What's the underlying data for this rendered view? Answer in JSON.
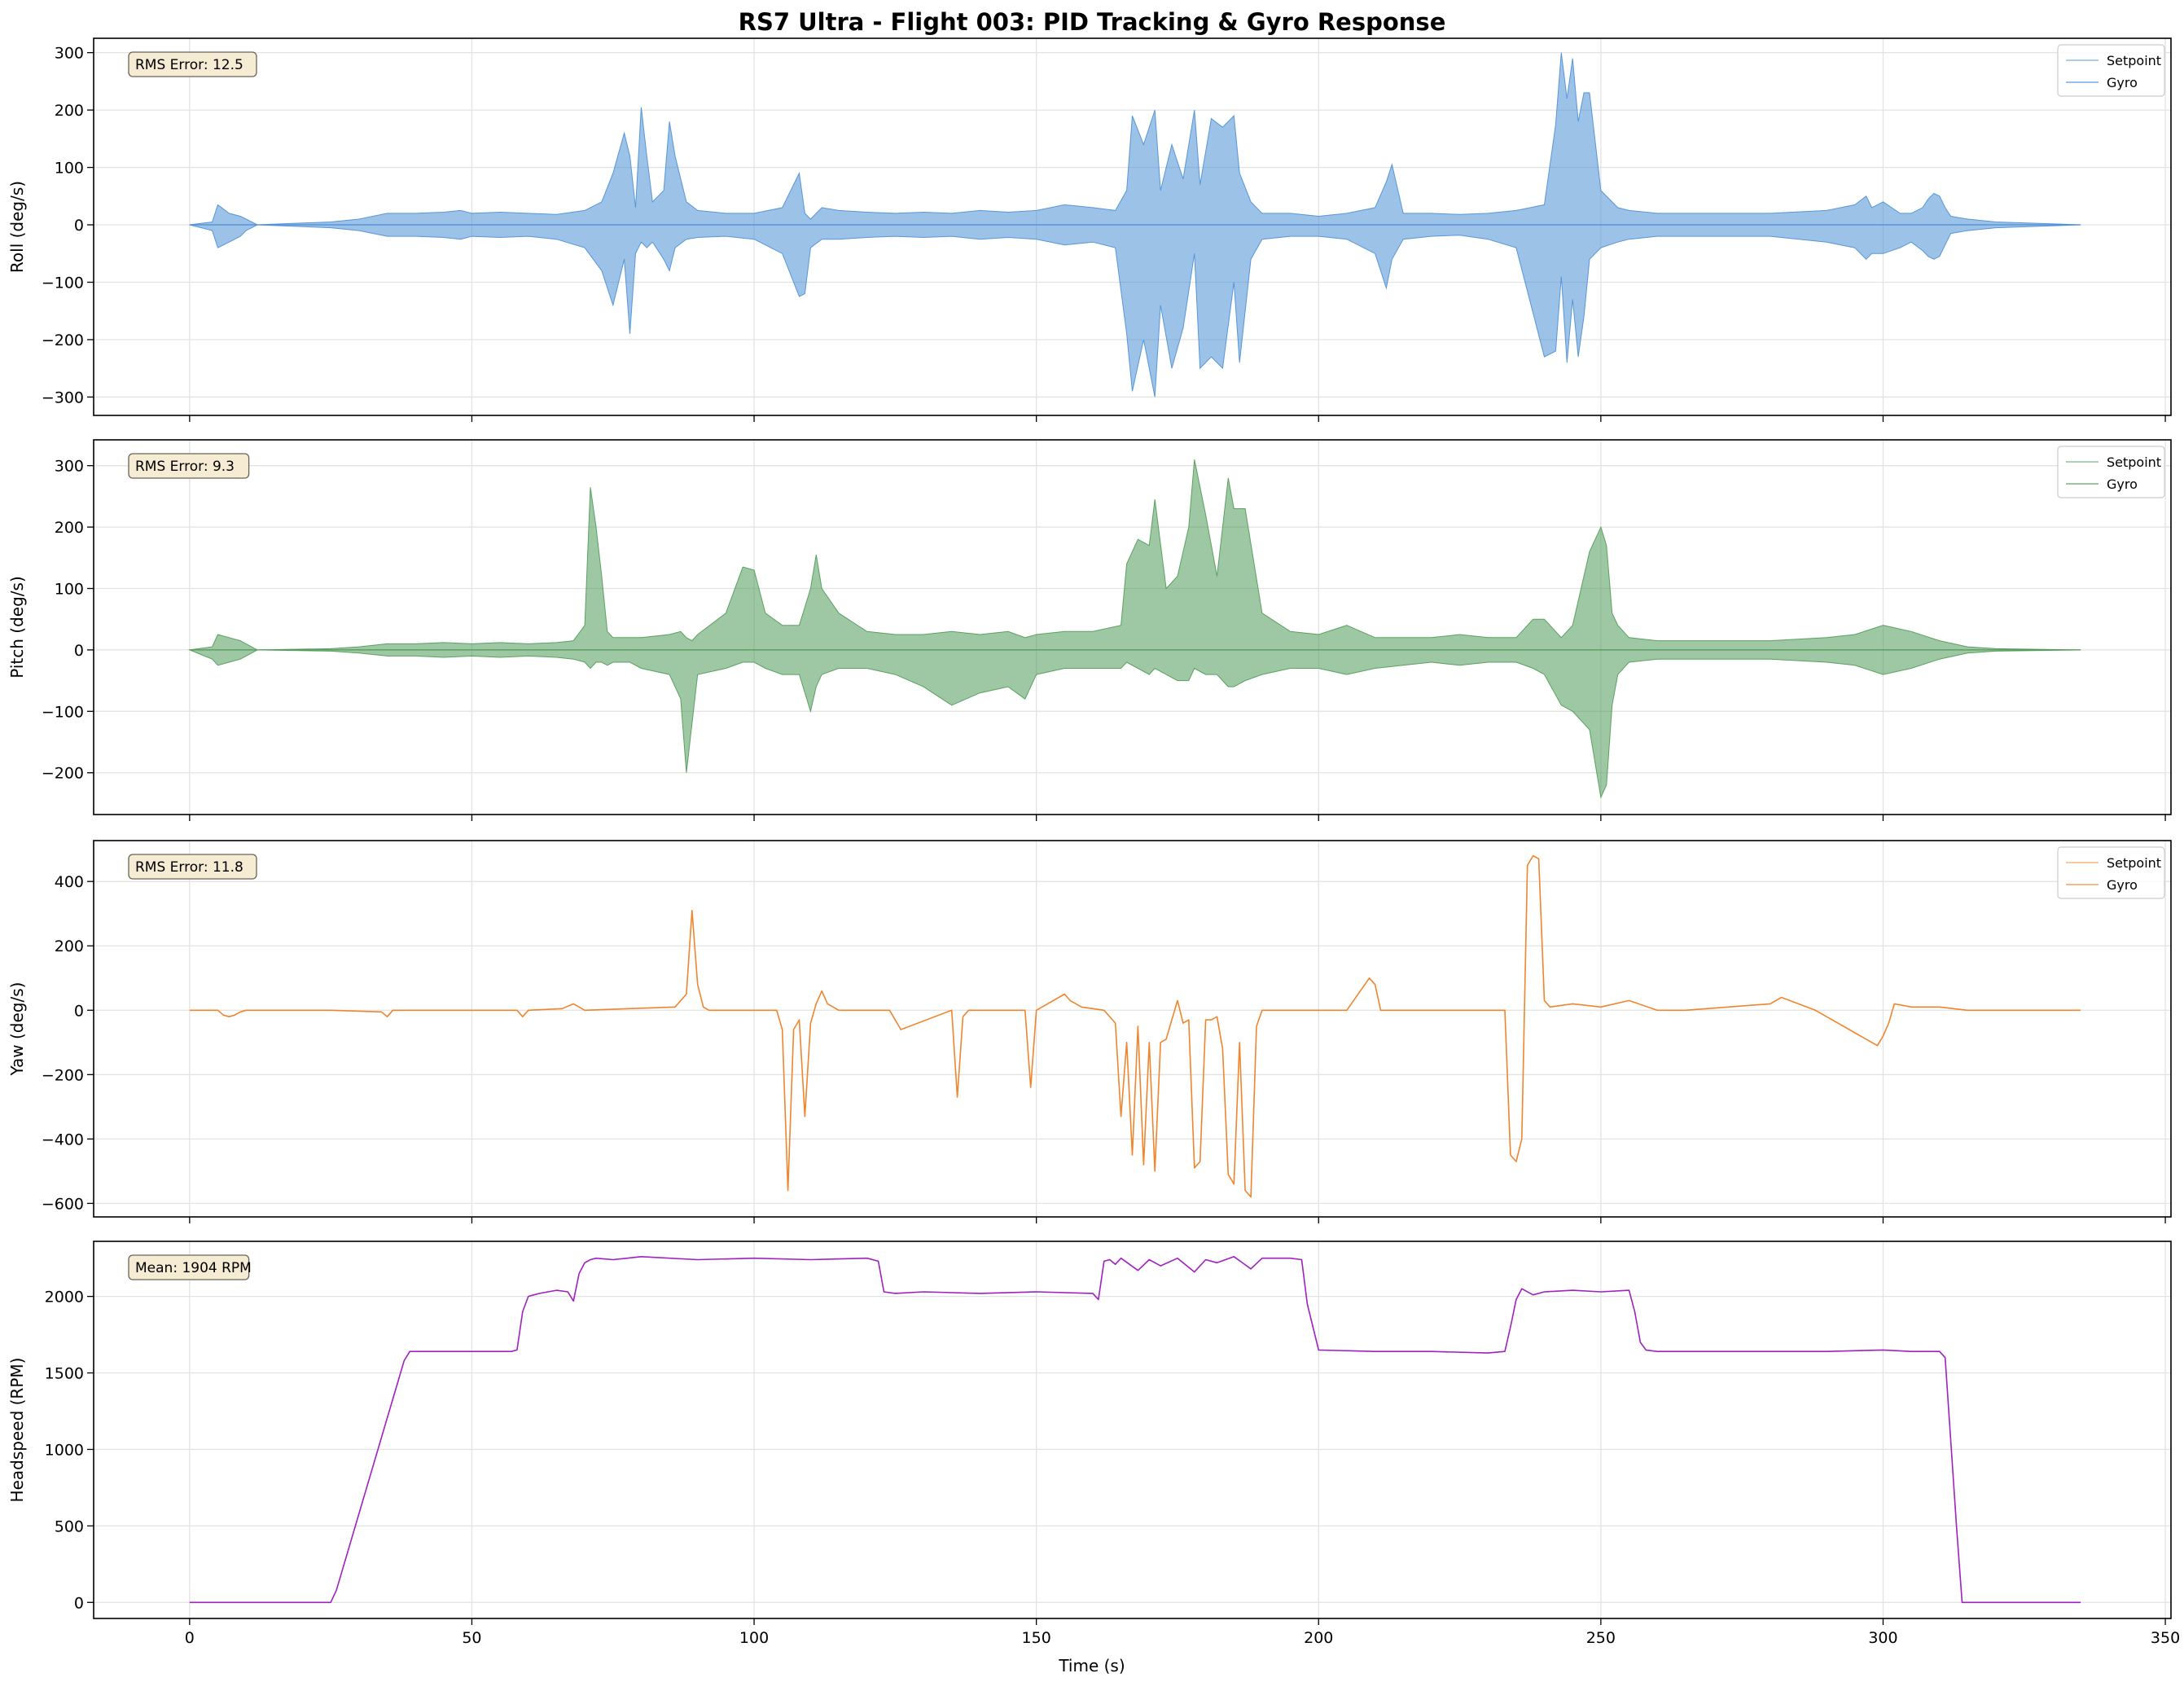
{
  "figure": {
    "title": "RS7 Ultra - Flight 003: PID Tracking & Gyro Response",
    "xlabel": "Time (s)"
  },
  "colors": {
    "roll": "#4a8fd6",
    "pitch": "#4f9a57",
    "yaw": "#f0852d",
    "headspeed": "#a020c0",
    "annotation_fill": "#f6ebd3"
  },
  "chart_data": [
    {
      "type": "line",
      "ylabel": "Roll (deg/s)",
      "annotation": "RMS Error: 12.5",
      "xlim": [
        -17,
        351
      ],
      "ylim": [
        -332,
        325
      ],
      "xticks": [
        0,
        50,
        100,
        150,
        200,
        250,
        300,
        350
      ],
      "yticks": [
        -300,
        -200,
        -100,
        0,
        100,
        200,
        300
      ],
      "grid": true,
      "legend": "top-right",
      "series": [
        {
          "name": "Setpoint",
          "color": "roll"
        },
        {
          "name": "Gyro",
          "color": "roll"
        }
      ],
      "envelope": {
        "description": "approximate max/min extent of signal over time",
        "x": [
          0,
          4,
          5,
          7,
          9,
          10,
          12,
          25,
          30,
          35,
          40,
          45,
          48,
          50,
          55,
          60,
          65,
          70,
          73,
          75,
          77,
          78,
          79,
          80,
          81,
          82,
          84,
          85,
          86,
          88,
          90,
          95,
          100,
          105,
          108,
          109,
          110,
          112,
          115,
          120,
          125,
          130,
          135,
          140,
          145,
          150,
          155,
          160,
          164,
          166,
          167,
          169,
          171,
          172,
          174,
          176,
          178,
          179,
          181,
          183,
          185,
          186,
          188,
          190,
          195,
          200,
          205,
          210,
          212,
          213,
          215,
          220,
          225,
          230,
          235,
          240,
          242,
          243,
          244,
          245,
          246,
          247,
          248,
          250,
          253,
          255,
          260,
          270,
          280,
          290,
          295,
          297,
          298,
          300,
          303,
          305,
          307,
          308,
          309,
          310,
          311,
          312,
          315,
          320,
          335
        ],
        "max": [
          0,
          5,
          35,
          20,
          15,
          10,
          0,
          5,
          10,
          20,
          20,
          22,
          25,
          20,
          22,
          20,
          18,
          25,
          40,
          90,
          160,
          120,
          30,
          205,
          120,
          40,
          60,
          180,
          120,
          40,
          25,
          20,
          20,
          30,
          90,
          20,
          10,
          30,
          25,
          22,
          20,
          22,
          20,
          25,
          22,
          25,
          35,
          30,
          25,
          60,
          190,
          140,
          200,
          60,
          140,
          80,
          200,
          70,
          185,
          170,
          190,
          90,
          40,
          20,
          20,
          15,
          20,
          30,
          75,
          105,
          20,
          20,
          18,
          20,
          25,
          35,
          175,
          300,
          220,
          290,
          180,
          230,
          230,
          60,
          30,
          25,
          20,
          20,
          20,
          25,
          35,
          50,
          30,
          40,
          20,
          20,
          30,
          45,
          55,
          50,
          30,
          15,
          10,
          5,
          0
        ],
        "min": [
          0,
          -10,
          -40,
          -30,
          -20,
          -10,
          0,
          -5,
          -10,
          -20,
          -20,
          -22,
          -25,
          -20,
          -22,
          -20,
          -25,
          -40,
          -80,
          -140,
          -60,
          -190,
          -50,
          -30,
          -40,
          -30,
          -60,
          -80,
          -40,
          -25,
          -22,
          -20,
          -25,
          -50,
          -125,
          -120,
          -40,
          -25,
          -25,
          -22,
          -20,
          -22,
          -20,
          -25,
          -22,
          -25,
          -35,
          -30,
          -40,
          -190,
          -290,
          -200,
          -300,
          -140,
          -250,
          -180,
          -50,
          -250,
          -230,
          -250,
          -100,
          -240,
          -60,
          -25,
          -20,
          -20,
          -25,
          -50,
          -110,
          -60,
          -25,
          -20,
          -18,
          -25,
          -40,
          -230,
          -220,
          -90,
          -240,
          -130,
          -230,
          -160,
          -60,
          -40,
          -30,
          -25,
          -20,
          -20,
          -20,
          -30,
          -40,
          -60,
          -50,
          -50,
          -40,
          -30,
          -45,
          -55,
          -60,
          -55,
          -35,
          -15,
          -10,
          -5,
          0
        ]
      }
    },
    {
      "type": "line",
      "ylabel": "Pitch (deg/s)",
      "annotation": "RMS Error: 9.3",
      "xlim": [
        -17,
        351
      ],
      "ylim": [
        -268,
        342
      ],
      "xticks": [
        0,
        50,
        100,
        150,
        200,
        250,
        300,
        350
      ],
      "yticks": [
        -200,
        -100,
        0,
        100,
        200,
        300
      ],
      "grid": true,
      "legend": "top-right",
      "series": [
        {
          "name": "Setpoint",
          "color": "pitch"
        },
        {
          "name": "Gyro",
          "color": "pitch"
        }
      ],
      "envelope": {
        "description": "approximate max/min extent of signal over time",
        "x": [
          0,
          4,
          5,
          7,
          9,
          10,
          12,
          25,
          30,
          35,
          40,
          45,
          50,
          55,
          60,
          65,
          68,
          70,
          71,
          72,
          73,
          74,
          75,
          78,
          80,
          85,
          87,
          88,
          89,
          90,
          95,
          98,
          100,
          102,
          105,
          108,
          110,
          111,
          112,
          115,
          120,
          125,
          130,
          135,
          140,
          145,
          148,
          150,
          155,
          160,
          165,
          166,
          168,
          170,
          171,
          173,
          175,
          177,
          178,
          180,
          182,
          184,
          185,
          187,
          190,
          195,
          200,
          205,
          210,
          215,
          220,
          225,
          230,
          235,
          238,
          240,
          243,
          245,
          248,
          250,
          251,
          252,
          253,
          255,
          260,
          270,
          280,
          290,
          295,
          300,
          305,
          310,
          315,
          320,
          335
        ],
        "max": [
          0,
          5,
          25,
          20,
          15,
          10,
          0,
          2,
          5,
          10,
          10,
          12,
          10,
          12,
          10,
          12,
          15,
          40,
          265,
          200,
          120,
          30,
          20,
          20,
          20,
          25,
          30,
          20,
          15,
          25,
          60,
          135,
          130,
          60,
          40,
          40,
          100,
          155,
          100,
          60,
          30,
          25,
          25,
          30,
          25,
          30,
          20,
          25,
          30,
          30,
          40,
          140,
          180,
          170,
          245,
          100,
          120,
          200,
          310,
          220,
          120,
          280,
          230,
          230,
          60,
          30,
          25,
          40,
          20,
          20,
          20,
          25,
          20,
          20,
          50,
          50,
          20,
          40,
          160,
          200,
          170,
          60,
          40,
          20,
          15,
          15,
          15,
          20,
          25,
          40,
          30,
          15,
          5,
          2,
          0
        ],
        "min": [
          0,
          -15,
          -25,
          -20,
          -15,
          -10,
          0,
          -2,
          -5,
          -10,
          -10,
          -12,
          -10,
          -12,
          -10,
          -12,
          -15,
          -20,
          -30,
          -20,
          -20,
          -25,
          -20,
          -20,
          -30,
          -40,
          -80,
          -200,
          -120,
          -40,
          -30,
          -20,
          -20,
          -30,
          -40,
          -40,
          -100,
          -60,
          -40,
          -30,
          -30,
          -40,
          -60,
          -90,
          -70,
          -60,
          -80,
          -40,
          -30,
          -30,
          -30,
          -20,
          -30,
          -40,
          -30,
          -40,
          -50,
          -50,
          -30,
          -40,
          -40,
          -60,
          -60,
          -50,
          -40,
          -30,
          -30,
          -40,
          -30,
          -25,
          -20,
          -25,
          -20,
          -20,
          -30,
          -40,
          -90,
          -100,
          -130,
          -240,
          -220,
          -90,
          -40,
          -20,
          -15,
          -15,
          -15,
          -20,
          -25,
          -40,
          -30,
          -15,
          -5,
          -2,
          0
        ]
      }
    },
    {
      "type": "line",
      "ylabel": "Yaw (deg/s)",
      "annotation": "RMS Error: 11.8",
      "xlim": [
        -17,
        351
      ],
      "ylim": [
        -642,
        527
      ],
      "xticks": [
        0,
        50,
        100,
        150,
        200,
        250,
        300,
        350
      ],
      "yticks": [
        -600,
        -400,
        -200,
        0,
        200,
        400
      ],
      "grid": true,
      "legend": "top-right",
      "series": [
        {
          "name": "Setpoint",
          "color": "yaw"
        },
        {
          "name": "Gyro",
          "color": "yaw"
        }
      ],
      "trace": {
        "description": "approximate signal samples over time",
        "x": [
          0,
          5,
          6,
          7,
          8,
          9,
          10,
          25,
          34,
          35,
          36,
          58,
          59,
          60,
          66,
          68,
          70,
          86,
          88,
          89,
          90,
          91,
          92,
          104,
          105,
          106,
          107,
          108,
          109,
          110,
          111,
          112,
          113,
          114,
          115,
          120,
          124,
          126,
          135,
          136,
          137,
          138,
          148,
          149,
          150,
          155,
          156,
          158,
          162,
          164,
          165,
          166,
          167,
          168,
          169,
          170,
          171,
          172,
          173,
          174,
          175,
          176,
          177,
          178,
          179,
          180,
          181,
          182,
          183,
          184,
          185,
          186,
          187,
          188,
          189,
          190,
          195,
          205,
          209,
          210,
          211,
          225,
          233,
          234,
          235,
          236,
          237,
          238,
          239,
          240,
          241,
          245,
          250,
          255,
          260,
          265,
          280,
          282,
          285,
          288,
          290,
          292,
          294,
          296,
          298,
          299,
          300,
          301,
          302,
          305,
          310,
          315,
          335
        ],
        "y": [
          0,
          0,
          -15,
          -20,
          -15,
          -5,
          0,
          0,
          -5,
          -20,
          0,
          0,
          -20,
          0,
          5,
          20,
          0,
          10,
          50,
          310,
          80,
          10,
          0,
          0,
          -60,
          -560,
          -60,
          -30,
          -330,
          -40,
          20,
          60,
          20,
          10,
          0,
          0,
          0,
          -60,
          0,
          -270,
          -20,
          0,
          0,
          -240,
          0,
          50,
          30,
          10,
          0,
          -40,
          -330,
          -100,
          -450,
          -50,
          -480,
          -100,
          -500,
          -100,
          -90,
          -30,
          30,
          -40,
          -30,
          -490,
          -470,
          -30,
          -30,
          -20,
          -120,
          -510,
          -540,
          -100,
          -560,
          -580,
          -50,
          0,
          0,
          0,
          100,
          80,
          0,
          0,
          0,
          -450,
          -470,
          -400,
          450,
          480,
          470,
          30,
          10,
          20,
          10,
          30,
          0,
          0,
          20,
          40,
          20,
          0,
          -20,
          -40,
          -60,
          -80,
          -100,
          -110,
          -80,
          -40,
          20,
          10,
          10,
          0,
          0
        ]
      }
    },
    {
      "type": "line",
      "ylabel": "Headspeed (RPM)",
      "xlabel": "Time (s)",
      "annotation": "Mean: 1904 RPM",
      "xlim": [
        -17,
        351
      ],
      "ylim": [
        -105,
        2360
      ],
      "xticks": [
        0,
        50,
        100,
        150,
        200,
        250,
        300,
        350
      ],
      "yticks": [
        0,
        500,
        1000,
        1500,
        2000
      ],
      "grid": true,
      "series": [
        {
          "color": "headspeed"
        }
      ],
      "trace": {
        "description": "approximate signal samples over time",
        "x": [
          0,
          25,
          25.5,
          26,
          38,
          39,
          45,
          55,
          57,
          58,
          59,
          60,
          61,
          62,
          65,
          67,
          68,
          69,
          70,
          71,
          72,
          75,
          80,
          90,
          100,
          110,
          120,
          122,
          123,
          125,
          130,
          140,
          150,
          160,
          161,
          162,
          163,
          164,
          165,
          168,
          170,
          172,
          175,
          178,
          180,
          182,
          185,
          188,
          190,
          195,
          197,
          198,
          200,
          210,
          220,
          230,
          233,
          234,
          235,
          236,
          238,
          240,
          245,
          250,
          255,
          256,
          257,
          258,
          260,
          270,
          280,
          290,
          300,
          305,
          310,
          311,
          313,
          314,
          320,
          335
        ],
        "y": [
          0,
          0,
          40,
          80,
          1580,
          1640,
          1640,
          1640,
          1640,
          1650,
          1900,
          2000,
          2010,
          2020,
          2040,
          2030,
          1970,
          2150,
          2220,
          2240,
          2250,
          2240,
          2260,
          2240,
          2250,
          2240,
          2250,
          2230,
          2030,
          2020,
          2030,
          2020,
          2030,
          2020,
          1980,
          2230,
          2240,
          2210,
          2250,
          2170,
          2240,
          2200,
          2250,
          2160,
          2240,
          2220,
          2260,
          2180,
          2250,
          2250,
          2240,
          1950,
          1650,
          1640,
          1640,
          1630,
          1640,
          1800,
          1980,
          2050,
          2010,
          2030,
          2040,
          2030,
          2040,
          1900,
          1700,
          1650,
          1640,
          1640,
          1640,
          1640,
          1650,
          1640,
          1640,
          1600,
          500,
          0,
          0,
          0
        ]
      }
    }
  ]
}
